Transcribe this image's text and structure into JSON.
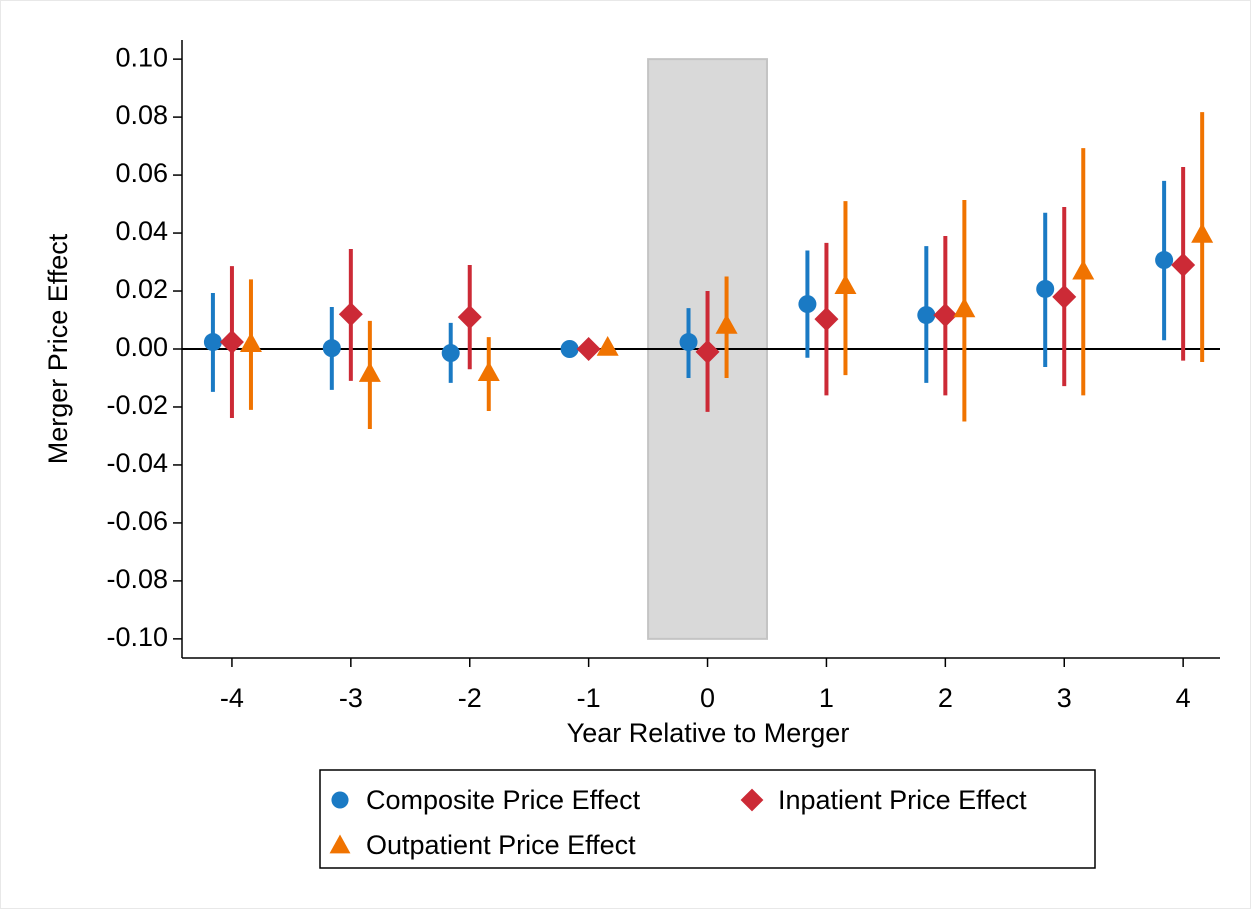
{
  "chart_data": {
    "type": "errorbar",
    "x_label": "Year Relative to Merger",
    "y_label": "Merger Price Effect",
    "x": [
      -4,
      -3,
      -2,
      -1,
      0,
      1,
      2,
      3,
      4
    ],
    "xlim": [
      -4.42,
      4.31
    ],
    "xticks": [
      -4,
      -3,
      -2,
      -1,
      0,
      1,
      2,
      3,
      4
    ],
    "ylim": [
      -0.1066,
      0.1066
    ],
    "yticks": [
      {
        "value": -0.1,
        "label": "-0.10"
      },
      {
        "value": -0.08,
        "label": "-0.08"
      },
      {
        "value": -0.06,
        "label": "-0.06"
      },
      {
        "value": -0.04,
        "label": "-0.04"
      },
      {
        "value": -0.02,
        "label": "-0.02"
      },
      {
        "value": 0,
        "label": "0.00"
      },
      {
        "value": 0.02,
        "label": "0.02"
      },
      {
        "value": 0.04,
        "label": "0.04"
      },
      {
        "value": 0.06,
        "label": "0.06"
      },
      {
        "value": 0.08,
        "label": "0.08"
      },
      {
        "value": 0.1,
        "label": "0.10"
      }
    ],
    "hline": 0,
    "highlight": [
      -0.5,
      0.5
    ],
    "series": [
      {
        "name": "Composite Price Effect",
        "color": "#1a7ac4",
        "marker": "circle",
        "values": [
          0.0024,
          0.0003,
          -0.0014,
          0,
          0.0024,
          0.0155,
          0.0117,
          0.0207,
          0.0307
        ],
        "lower": [
          -0.0148,
          -0.0141,
          -0.0117,
          null,
          -0.01,
          -0.003,
          -0.0117,
          -0.0062,
          0.003
        ],
        "upper": [
          0.0193,
          0.0145,
          0.009,
          null,
          0.0141,
          0.034,
          0.0355,
          0.047,
          0.058
        ]
      },
      {
        "name": "Inpatient Price Effect",
        "color": "#cc2a36",
        "marker": "diamond",
        "values": [
          0.0024,
          0.012,
          0.011,
          0,
          -0.001,
          0.0103,
          0.0117,
          0.018,
          0.029
        ],
        "lower": [
          -0.0238,
          -0.011,
          -0.007,
          null,
          -0.0217,
          -0.016,
          -0.016,
          -0.0128,
          -0.004
        ],
        "upper": [
          0.0286,
          0.0345,
          0.029,
          null,
          0.02,
          0.0366,
          0.039,
          0.049,
          0.0628
        ]
      },
      {
        "name": "Outpatient Price Effect",
        "color": "#f07300",
        "marker": "triangle",
        "values": [
          0.002,
          -0.0083,
          -0.008,
          0.0007,
          0.0083,
          0.022,
          0.014,
          0.027,
          0.0397
        ],
        "lower": [
          -0.021,
          -0.0276,
          -0.0214,
          null,
          -0.01,
          -0.009,
          -0.025,
          -0.016,
          -0.0045
        ],
        "upper": [
          0.024,
          0.0097,
          0.0041,
          null,
          0.025,
          0.051,
          0.0514,
          0.0693,
          0.0817
        ]
      }
    ]
  }
}
